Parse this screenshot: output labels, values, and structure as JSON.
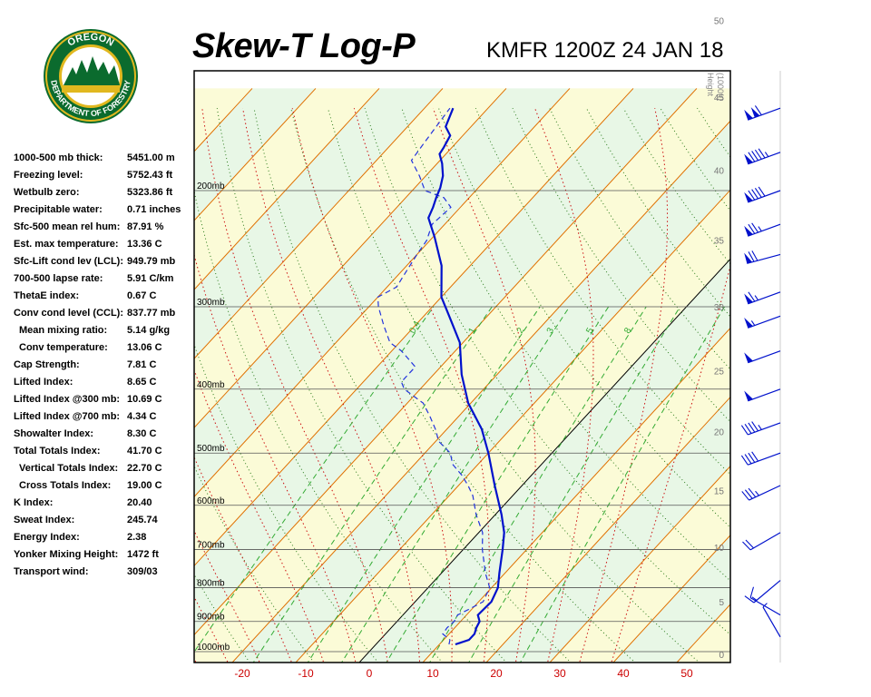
{
  "header": {
    "title": "Skew-T Log-P",
    "station": "KMFR 1200Z 24 JAN 18"
  },
  "logo": {
    "top_text": "OREGON",
    "bottom_text": "DEPARTMENT OF FORESTRY",
    "colors": {
      "ring": "#0b6b2e",
      "gold": "#e1b81f",
      "sky": "#ffffff"
    }
  },
  "stats": [
    {
      "label": "1000-500 mb thick:",
      "value": "5451.00 m",
      "indent": false
    },
    {
      "label": "Freezing level:",
      "value": "5752.43 ft",
      "indent": false
    },
    {
      "label": "Wetbulb zero:",
      "value": "5323.86 ft",
      "indent": false
    },
    {
      "label": "Precipitable water:",
      "value": "0.71 inches",
      "indent": false
    },
    {
      "label": "Sfc-500 mean rel hum:",
      "value": "87.91 %",
      "indent": false
    },
    {
      "label": "Est. max temperature:",
      "value": "13.36 C",
      "indent": false
    },
    {
      "label": "Sfc-Lift cond lev (LCL):",
      "value": "949.79 mb",
      "indent": false
    },
    {
      "label": "700-500 lapse rate:",
      "value": "5.91 C/km",
      "indent": false
    },
    {
      "label": "ThetaE index:",
      "value": "0.67 C",
      "indent": false
    },
    {
      "label": "Conv cond level (CCL):",
      "value": "837.77 mb",
      "indent": false
    },
    {
      "label": "Mean mixing ratio:",
      "value": "5.14 g/kg",
      "indent": true
    },
    {
      "label": "Conv temperature:",
      "value": "13.06 C",
      "indent": true
    },
    {
      "label": "Cap Strength:",
      "value": "7.81 C",
      "indent": false
    },
    {
      "label": "Lifted Index:",
      "value": "8.65 C",
      "indent": false
    },
    {
      "label": "Lifted Index @300 mb:",
      "value": "10.69 C",
      "indent": false
    },
    {
      "label": "Lifted Index @700 mb:",
      "value": "4.34 C",
      "indent": false
    },
    {
      "label": "Showalter Index:",
      "value": "8.30 C",
      "indent": false
    },
    {
      "label": "Total Totals Index:",
      "value": "41.70 C",
      "indent": false
    },
    {
      "label": "Vertical Totals Index:",
      "value": "22.70 C",
      "indent": true
    },
    {
      "label": "Cross Totals Index:",
      "value": "19.00 C",
      "indent": true
    },
    {
      "label": "K Index:",
      "value": "20.40",
      "indent": false
    },
    {
      "label": "Sweat Index:",
      "value": "245.74",
      "indent": false
    },
    {
      "label": "Energy Index:",
      "value": "2.38",
      "indent": false
    },
    {
      "label": "Yonker Mixing Height:",
      "value": "1472 ft",
      "indent": false
    },
    {
      "label": "Transport wind:",
      "value": "309/03",
      "indent": false
    }
  ],
  "chart_data": {
    "type": "line",
    "xlim": [
      -29,
      56
    ],
    "plim": [
      1050,
      150
    ],
    "x_ticks": [
      -20,
      -10,
      0,
      10,
      20,
      30,
      40,
      50
    ],
    "pressure_labels": [
      {
        "p": 200,
        "label": "200mb"
      },
      {
        "p": 300,
        "label": "300mb"
      },
      {
        "p": 400,
        "label": "400mb"
      },
      {
        "p": 500,
        "label": "500mb"
      },
      {
        "p": 600,
        "label": "600mb"
      },
      {
        "p": 700,
        "label": "700mb"
      },
      {
        "p": 800,
        "label": "800mb"
      },
      {
        "p": 900,
        "label": "900mb"
      },
      {
        "p": 1000,
        "label": "1000mb"
      }
    ],
    "height_axis_label": "Height\n(1000ft)",
    "height_ticks": [
      0,
      5,
      10,
      15,
      20,
      25,
      30,
      35,
      40,
      45,
      50
    ],
    "mixing_ratio_labels": [
      "0.4",
      "1",
      "2",
      "3",
      "5",
      "8"
    ],
    "temperature": [
      {
        "p": 975,
        "t": 12.5
      },
      {
        "p": 960,
        "t": 14.0
      },
      {
        "p": 940,
        "t": 14.0
      },
      {
        "p": 920,
        "t": 13.4
      },
      {
        "p": 900,
        "t": 13.0
      },
      {
        "p": 880,
        "t": 11.8
      },
      {
        "p": 860,
        "t": 11.9
      },
      {
        "p": 840,
        "t": 12.0
      },
      {
        "p": 800,
        "t": 11.0
      },
      {
        "p": 760,
        "t": 9.1
      },
      {
        "p": 700,
        "t": 6.2
      },
      {
        "p": 660,
        "t": 4.0
      },
      {
        "p": 620,
        "t": 1.0
      },
      {
        "p": 560,
        "t": -4.3
      },
      {
        "p": 500,
        "t": -10.0
      },
      {
        "p": 460,
        "t": -14.5
      },
      {
        "p": 420,
        "t": -20.4
      },
      {
        "p": 380,
        "t": -25.6
      },
      {
        "p": 340,
        "t": -30.5
      },
      {
        "p": 310,
        "t": -36.0
      },
      {
        "p": 290,
        "t": -40.0
      },
      {
        "p": 260,
        "t": -44.5
      },
      {
        "p": 235,
        "t": -49.8
      },
      {
        "p": 220,
        "t": -53.5
      },
      {
        "p": 212,
        "t": -54.3
      },
      {
        "p": 205,
        "t": -55.2
      },
      {
        "p": 198,
        "t": -56.0
      },
      {
        "p": 190,
        "t": -57.3
      },
      {
        "p": 182,
        "t": -59.2
      },
      {
        "p": 176,
        "t": -61.0
      },
      {
        "p": 172,
        "t": -61.3
      },
      {
        "p": 165,
        "t": -62.0
      },
      {
        "p": 160,
        "t": -64.0
      },
      {
        "p": 150,
        "t": -65.5
      }
    ],
    "dewpoint": [
      {
        "p": 975,
        "t": 11.5
      },
      {
        "p": 960,
        "t": 11.0
      },
      {
        "p": 940,
        "t": 9.0
      },
      {
        "p": 920,
        "t": 8.8
      },
      {
        "p": 900,
        "t": 9.0
      },
      {
        "p": 880,
        "t": 8.6
      },
      {
        "p": 860,
        "t": 9.7
      },
      {
        "p": 840,
        "t": 10.7
      },
      {
        "p": 800,
        "t": 9.7
      },
      {
        "p": 760,
        "t": 6.9
      },
      {
        "p": 700,
        "t": 3.0
      },
      {
        "p": 660,
        "t": 0.6
      },
      {
        "p": 620,
        "t": -3.0
      },
      {
        "p": 580,
        "t": -6.3
      },
      {
        "p": 560,
        "t": -8.5
      },
      {
        "p": 540,
        "t": -11.0
      },
      {
        "p": 520,
        "t": -14.0
      },
      {
        "p": 500,
        "t": -16.0
      },
      {
        "p": 480,
        "t": -19.5
      },
      {
        "p": 460,
        "t": -21.8
      },
      {
        "p": 440,
        "t": -24.5
      },
      {
        "p": 420,
        "t": -27.5
      },
      {
        "p": 400,
        "t": -32.5
      },
      {
        "p": 390,
        "t": -34.0
      },
      {
        "p": 370,
        "t": -34.0
      },
      {
        "p": 350,
        "t": -38.5
      },
      {
        "p": 340,
        "t": -41.5
      },
      {
        "p": 320,
        "t": -45.0
      },
      {
        "p": 300,
        "t": -48.5
      },
      {
        "p": 290,
        "t": -50.0
      },
      {
        "p": 280,
        "t": -48.5
      },
      {
        "p": 270,
        "t": -49.0
      },
      {
        "p": 250,
        "t": -50.0
      },
      {
        "p": 238,
        "t": -50.5
      },
      {
        "p": 225,
        "t": -52.0
      },
      {
        "p": 212,
        "t": -51.5
      },
      {
        "p": 205,
        "t": -54.0
      },
      {
        "p": 200,
        "t": -58.0
      },
      {
        "p": 190,
        "t": -61.0
      },
      {
        "p": 180,
        "t": -64.5
      },
      {
        "p": 170,
        "t": -65.0
      },
      {
        "p": 160,
        "t": -65.5
      },
      {
        "p": 150,
        "t": -66.0
      }
    ],
    "colors": {
      "temperature": "#0011cc",
      "dewpoint": "#2233dd",
      "isotherm": "#e07000",
      "dry_adiabat": "#2a7a1a",
      "moist_adiabat": "#cc1111",
      "mixing_ratio": "#33aa33",
      "x_tick_label": "#cc0000",
      "band_green": "#e8f7e6",
      "band_yellow": "#fbfbd7"
    },
    "wind_barbs": [
      {
        "p": 150,
        "dir": 250,
        "kt": 110
      },
      {
        "p": 175,
        "dir": 250,
        "kt": 95
      },
      {
        "p": 200,
        "dir": 250,
        "kt": 90
      },
      {
        "p": 225,
        "dir": 250,
        "kt": 75
      },
      {
        "p": 250,
        "dir": 255,
        "kt": 70
      },
      {
        "p": 285,
        "dir": 250,
        "kt": 65
      },
      {
        "p": 310,
        "dir": 250,
        "kt": 55
      },
      {
        "p": 350,
        "dir": 250,
        "kt": 50
      },
      {
        "p": 400,
        "dir": 250,
        "kt": 50
      },
      {
        "p": 450,
        "dir": 250,
        "kt": 45
      },
      {
        "p": 500,
        "dir": 250,
        "kt": 40
      },
      {
        "p": 560,
        "dir": 245,
        "kt": 35
      },
      {
        "p": 660,
        "dir": 240,
        "kt": 20
      },
      {
        "p": 780,
        "dir": 230,
        "kt": 15
      },
      {
        "p": 880,
        "dir": 300,
        "kt": 10
      },
      {
        "p": 950,
        "dir": 330,
        "kt": 5
      }
    ]
  }
}
